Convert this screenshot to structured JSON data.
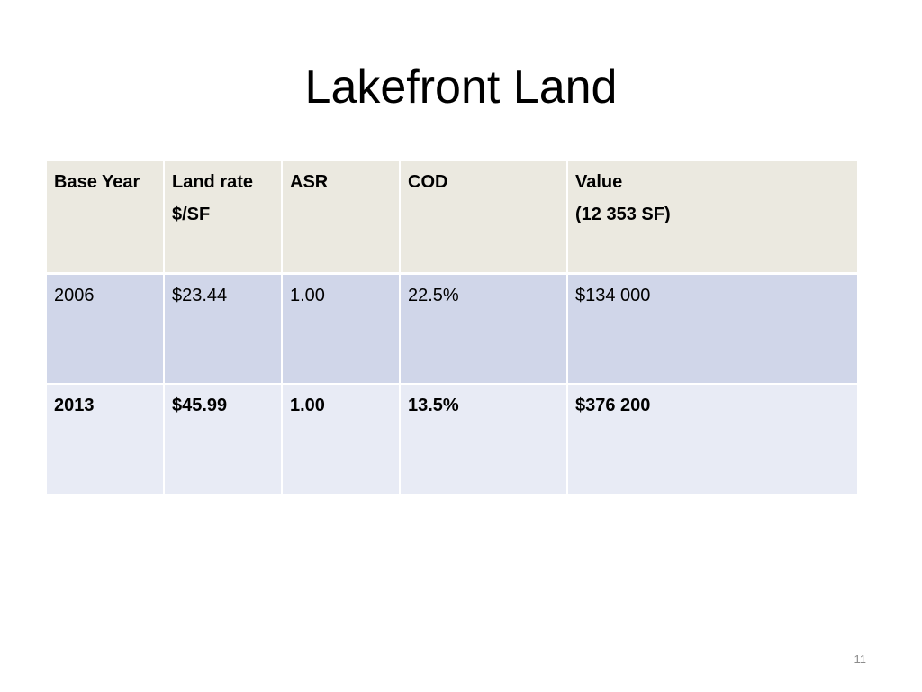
{
  "slide": {
    "title": "Lakefront Land",
    "page_number": "11"
  },
  "table": {
    "headers": [
      {
        "line1": "Base Year",
        "line2": ""
      },
      {
        "line1": "Land rate",
        "line2": "$/SF"
      },
      {
        "line1": "ASR",
        "line2": ""
      },
      {
        "line1": "COD",
        "line2": ""
      },
      {
        "line1": "Value",
        "line2": "(12 353 SF)"
      }
    ],
    "rows": [
      {
        "base_year": "2006",
        "land_rate": "$23.44",
        "asr": "1.00",
        "cod": "22.5%",
        "value": "$134 000"
      },
      {
        "base_year": "2013",
        "land_rate": "$45.99",
        "asr": "1.00",
        "cod": "13.5%",
        "value": "$376 200"
      }
    ]
  },
  "colors": {
    "header_bg": "#ebe9e0",
    "row1_bg": "#d0d6e9",
    "row2_bg": "#e8ebf5"
  }
}
